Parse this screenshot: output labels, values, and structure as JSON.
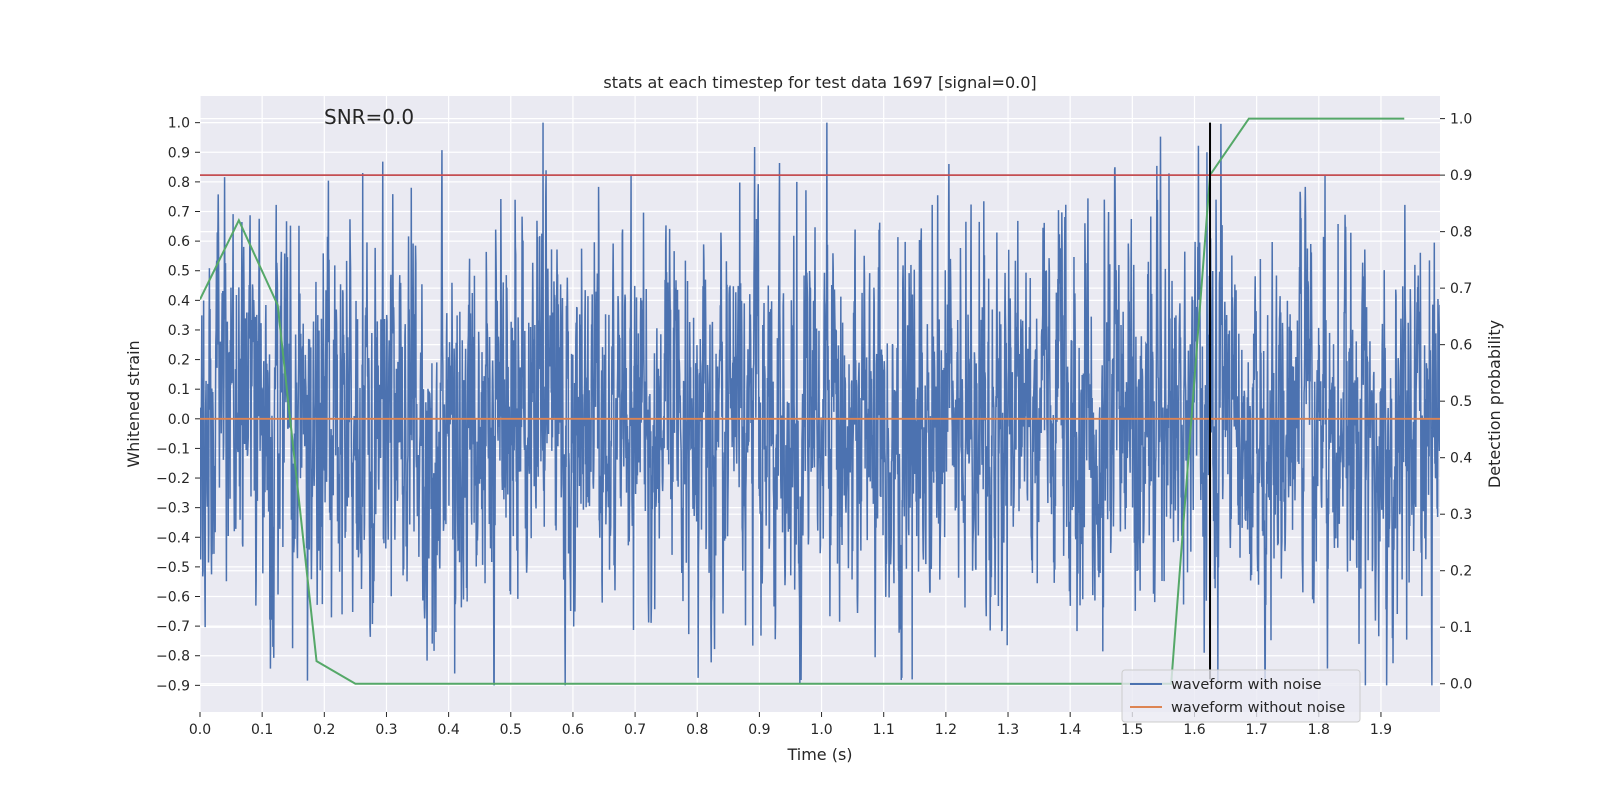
{
  "chart_data": {
    "type": "line",
    "title": "stats at each timestep for test data 1697 [signal=0.0]",
    "xlabel": "Time (s)",
    "ylabel_left": "Whitened strain",
    "ylabel_right": "Detection probability",
    "xlim": [
      0.0,
      1.995
    ],
    "ylim_left": [
      -0.99,
      1.09
    ],
    "ylim_right": [
      -0.05,
      1.04
    ],
    "x_ticks": [
      0.0,
      0.1,
      0.2,
      0.3,
      0.4,
      0.5,
      0.6,
      0.7,
      0.8,
      0.9,
      1.0,
      1.1,
      1.2,
      1.3,
      1.4,
      1.5,
      1.6,
      1.7,
      1.8,
      1.9
    ],
    "x_tick_labels": [
      "0.0",
      "0.1",
      "0.2",
      "0.3",
      "0.4",
      "0.5",
      "0.6",
      "0.7",
      "0.8",
      "0.9",
      "1.0",
      "1.1",
      "1.2",
      "1.3",
      "1.4",
      "1.5",
      "1.6",
      "1.7",
      "1.8",
      "1.9"
    ],
    "y_left_ticks": [
      -0.9,
      -0.8,
      -0.7,
      -0.6,
      -0.5,
      -0.4,
      -0.3,
      -0.2,
      -0.1,
      0.0,
      0.1,
      0.2,
      0.3,
      0.4,
      0.5,
      0.6,
      0.7,
      0.8,
      0.9,
      1.0
    ],
    "y_left_tick_labels": [
      "−0.9",
      "−0.8",
      "−0.7",
      "−0.6",
      "−0.5",
      "−0.4",
      "−0.3",
      "−0.2",
      "−0.1",
      "0.0",
      "0.1",
      "0.2",
      "0.3",
      "0.4",
      "0.5",
      "0.6",
      "0.7",
      "0.8",
      "0.9",
      "1.0"
    ],
    "y_right_ticks": [
      0.0,
      0.1,
      0.2,
      0.3,
      0.4,
      0.5,
      0.6,
      0.7,
      0.8,
      0.9,
      1.0
    ],
    "y_right_tick_labels": [
      "0.0",
      "0.1",
      "0.2",
      "0.3",
      "0.4",
      "0.5",
      "0.6",
      "0.7",
      "0.8",
      "0.9",
      "1.0"
    ],
    "series": [
      {
        "name": "waveform with noise",
        "axis": "left",
        "color": "#4c72b0",
        "generated": {
          "n": 4096,
          "x_end": 2.0,
          "seed": 1697,
          "sigma": 0.32,
          "clip": [
            -0.9,
            1.0
          ],
          "peaks": [
            {
              "x": 0.552,
              "y": 1.0
            },
            {
              "x": 0.41,
              "y": -0.86
            },
            {
              "x": 1.146,
              "y": -0.88
            },
            {
              "x": 1.875,
              "y": -0.9
            },
            {
              "x": 1.62,
              "y": 0.9
            },
            {
              "x": 0.262,
              "y": 0.83
            },
            {
              "x": 1.81,
              "y": 0.82
            },
            {
              "x": 0.96,
              "y": 0.8
            },
            {
              "x": 0.34,
              "y": 0.78
            }
          ]
        }
      },
      {
        "name": "waveform without noise",
        "axis": "left",
        "color": "#dd8452",
        "x": [
          0.0,
          2.0
        ],
        "y": [
          0.0,
          0.0
        ]
      },
      {
        "name": "detection probability",
        "axis": "right",
        "color": "#55a868",
        "x": [
          0.0,
          0.0625,
          0.125,
          0.1875,
          0.25,
          0.3125,
          0.375,
          0.4375,
          0.5,
          0.5625,
          0.625,
          0.6875,
          0.75,
          0.8125,
          0.875,
          0.9375,
          1.0,
          1.0625,
          1.125,
          1.1875,
          1.25,
          1.3125,
          1.375,
          1.4375,
          1.5,
          1.5625,
          1.625,
          1.6875,
          1.75,
          1.8125,
          1.875,
          1.9375
        ],
        "y": [
          0.68,
          0.82,
          0.67,
          0.04,
          0.0,
          0.0,
          0.0,
          0.0,
          0.0,
          0.0,
          0.0,
          0.0,
          0.0,
          0.0,
          0.0,
          0.0,
          0.0,
          0.0,
          0.0,
          0.0,
          0.0,
          0.0,
          0.0,
          0.0,
          0.0,
          0.0,
          0.9,
          1.0,
          1.0,
          1.0,
          1.0,
          1.0
        ]
      }
    ],
    "hlines": [
      {
        "name": "threshold",
        "axis": "right",
        "y": 0.9,
        "color": "#c44e52"
      }
    ],
    "vlines": [
      {
        "name": "detection-time",
        "x": 1.625,
        "y_left_range": [
          -0.88,
          1.0
        ],
        "color": "#000000"
      }
    ],
    "annotations": [
      {
        "text": "SNR=0.0",
        "x": 0.2,
        "y_left": 1.0
      }
    ],
    "legend": {
      "position": "lower-right",
      "entries": [
        "waveform with noise",
        "waveform without noise"
      ]
    },
    "grid": true,
    "colors": {
      "background": "#eaeaf2",
      "grid": "#ffffff"
    }
  }
}
